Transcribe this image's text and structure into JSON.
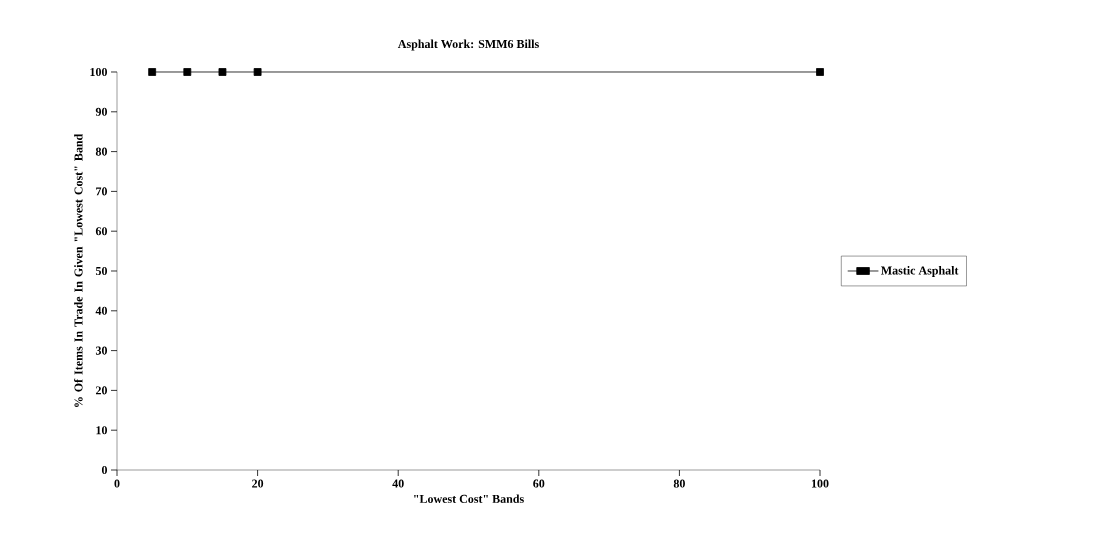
{
  "chart_data": {
    "type": "line",
    "title": "Asphalt Work: SMM6 Bills",
    "xlabel": "\"Lowest Cost\" Bands",
    "ylabel": "% Of Items In Trade In Given \"Lowest Cost\" Band",
    "x": [
      5,
      10,
      15,
      20,
      100
    ],
    "series": [
      {
        "name": "Mastic Asphalt",
        "color": "#000000",
        "values": [
          100,
          100,
          100,
          100,
          100
        ]
      }
    ],
    "xlim": [
      0,
      100
    ],
    "xticks": [
      0,
      20,
      40,
      60,
      80,
      100
    ],
    "ylim": [
      0,
      100
    ],
    "yticks": [
      0,
      10,
      20,
      30,
      40,
      50,
      60,
      70,
      80,
      90,
      100
    ],
    "marker": "square",
    "line_style": "solid",
    "legend": "right",
    "grid": false
  }
}
